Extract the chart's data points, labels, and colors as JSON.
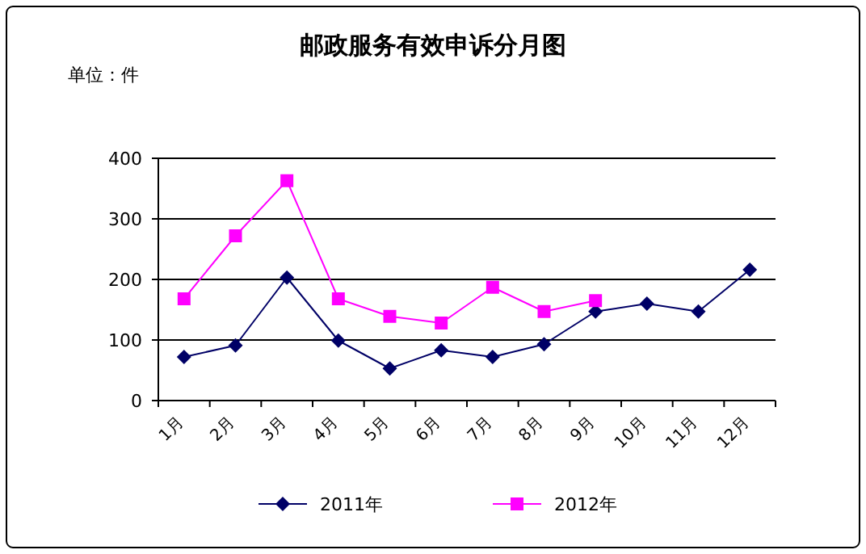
{
  "chart_data": {
    "type": "line",
    "title": "邮政服务有效申诉分月图",
    "annotations": [
      "单位：件"
    ],
    "categories": [
      "1月",
      "2月",
      "3月",
      "4月",
      "5月",
      "6月",
      "7月",
      "8月",
      "9月",
      "10月",
      "11月",
      "12月"
    ],
    "series": [
      {
        "name": "2011年",
        "color": "#000066",
        "marker": "diamond",
        "values": [
          72,
          91,
          203,
          99,
          53,
          83,
          72,
          93,
          147,
          160,
          147,
          216
        ]
      },
      {
        "name": "2012年",
        "color": "#ff00ff",
        "marker": "square",
        "values": [
          168,
          272,
          363,
          168,
          139,
          128,
          187,
          147,
          165,
          null,
          null,
          null
        ]
      }
    ],
    "ylim": [
      0,
      400
    ],
    "yticks": [
      0,
      100,
      200,
      300,
      400
    ],
    "grid": "y",
    "legend": "bottom",
    "line_style": "solid"
  }
}
